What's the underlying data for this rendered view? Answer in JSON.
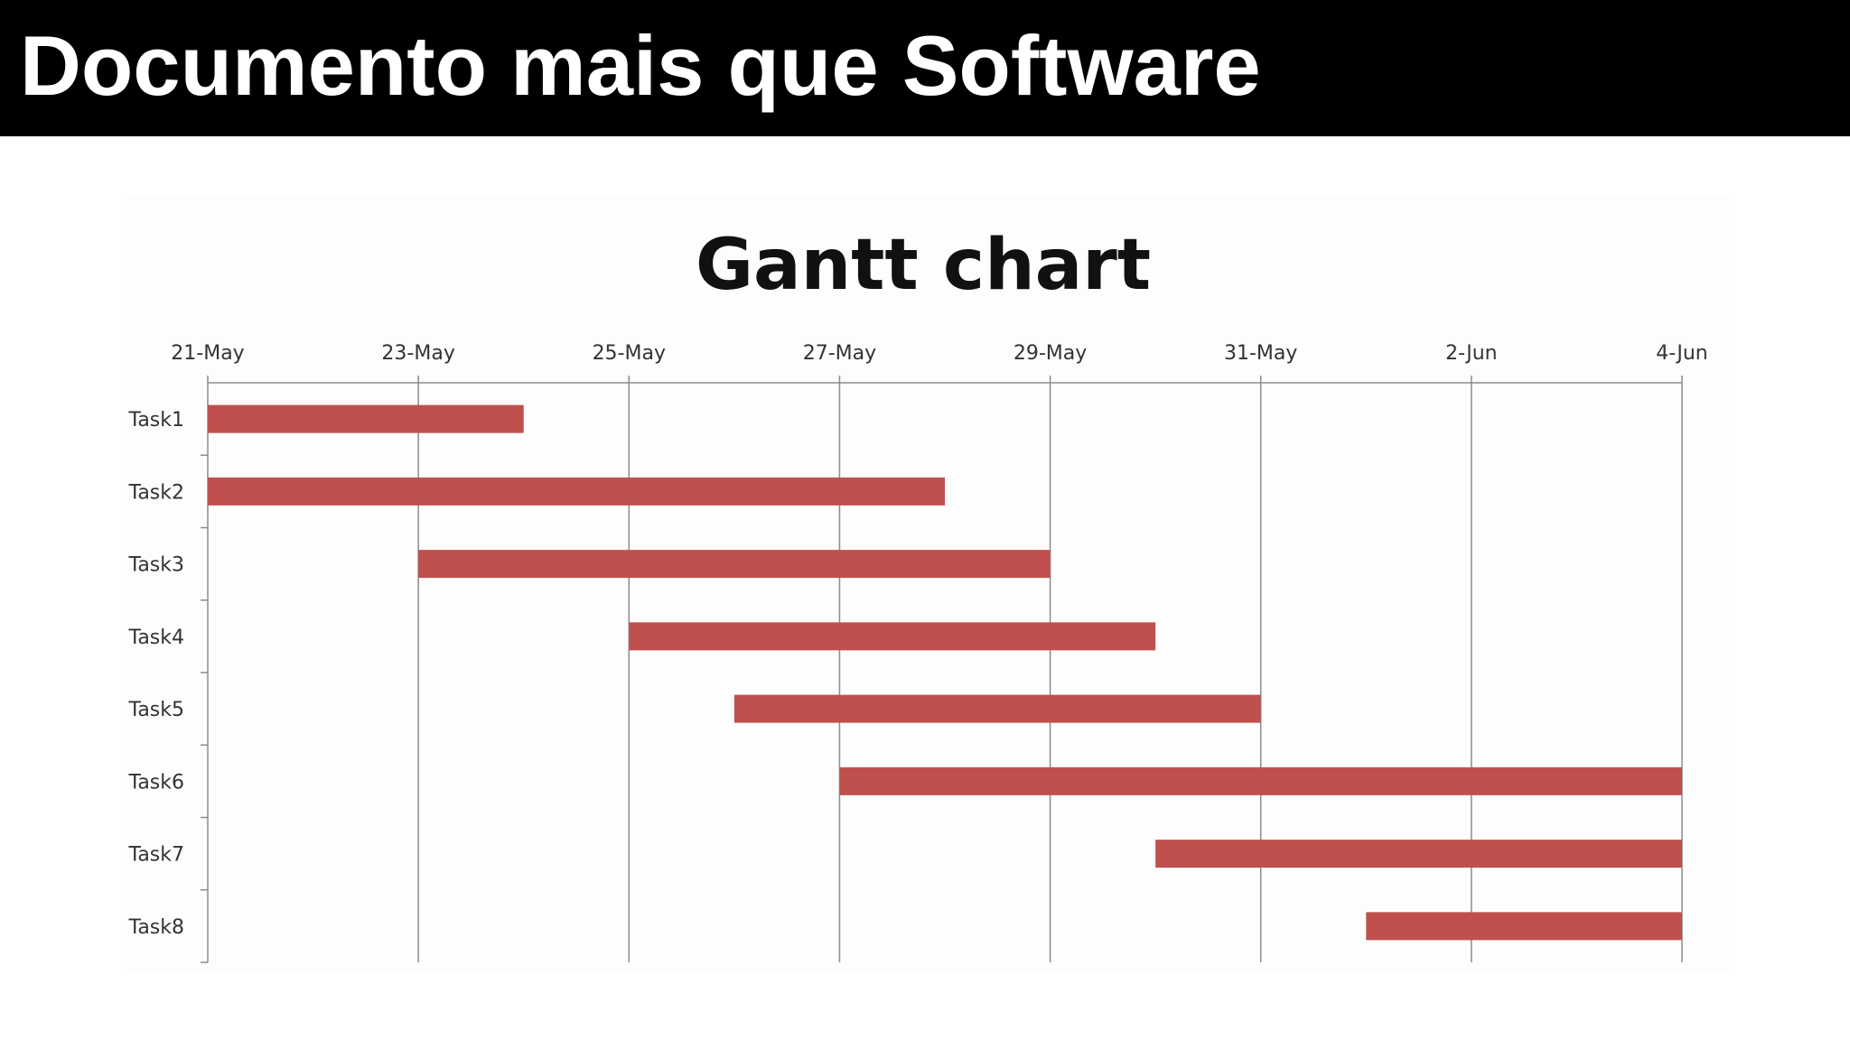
{
  "header": {
    "title": "Documento mais que Software"
  },
  "chart_data": {
    "type": "bar",
    "subtype": "gantt",
    "title": "Gantt chart",
    "xlabel": "",
    "ylabel": "",
    "x_axis_position": "top",
    "xlim": [
      "2024-05-21",
      "2024-06-04"
    ],
    "x_ticks": [
      {
        "date": "2024-05-21",
        "label": "21-May"
      },
      {
        "date": "2024-05-23",
        "label": "23-May"
      },
      {
        "date": "2024-05-25",
        "label": "25-May"
      },
      {
        "date": "2024-05-27",
        "label": "27-May"
      },
      {
        "date": "2024-05-29",
        "label": "29-May"
      },
      {
        "date": "2024-05-31",
        "label": "31-May"
      },
      {
        "date": "2024-06-02",
        "label": "2-Jun"
      },
      {
        "date": "2024-06-04",
        "label": "4-Jun"
      }
    ],
    "grid": true,
    "bar_color": "#c0504d",
    "tasks": [
      {
        "label": "Task1",
        "start": "2024-05-21",
        "end": "2024-05-24"
      },
      {
        "label": "Task2",
        "start": "2024-05-21",
        "end": "2024-05-28"
      },
      {
        "label": "Task3",
        "start": "2024-05-23",
        "end": "2024-05-29"
      },
      {
        "label": "Task4",
        "start": "2024-05-25",
        "end": "2024-05-30"
      },
      {
        "label": "Task5",
        "start": "2024-05-26",
        "end": "2024-05-31"
      },
      {
        "label": "Task6",
        "start": "2024-05-27",
        "end": "2024-06-04"
      },
      {
        "label": "Task7",
        "start": "2024-05-30",
        "end": "2024-06-04"
      },
      {
        "label": "Task8",
        "start": "2024-06-01",
        "end": "2024-06-04"
      }
    ]
  }
}
